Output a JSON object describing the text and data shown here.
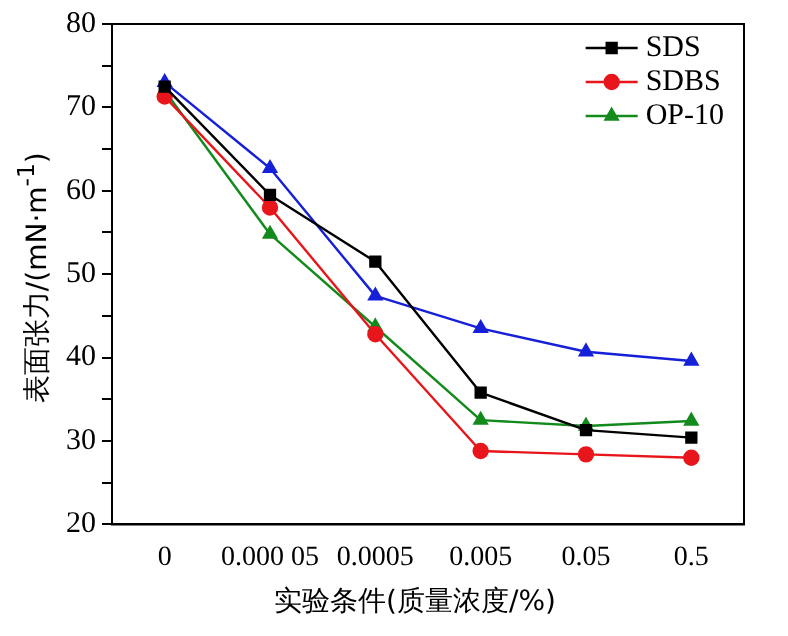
{
  "chart_data": {
    "type": "line",
    "xlabel": "实验条件(质量浓度/%)",
    "ylabel": "表面张力/(mN·m$^{-1}$)",
    "categories": [
      "0",
      "0.000 05",
      "0.0005",
      "0.005",
      "0.05",
      "0.5"
    ],
    "ylim": [
      20,
      80
    ],
    "yticks": [
      20,
      {
        "value": 25,
        "label": null
      },
      30,
      {
        "value": 35,
        "label": null
      },
      40,
      {
        "value": 45,
        "label": null
      },
      50,
      {
        "value": 55,
        "label": null
      },
      60,
      {
        "value": 65,
        "label": null
      },
      70,
      {
        "value": 75,
        "label": null
      },
      80
    ],
    "grid": false,
    "legend": "top right",
    "line_style": "solid",
    "series": [
      {
        "name": "SDS",
        "color": "#000000",
        "marker": "square",
        "values": [
          72.5,
          59.5,
          51.5,
          35.8,
          31.3,
          30.4
        ]
      },
      {
        "name": "SDBS",
        "color": "#e8161b",
        "marker": "circle",
        "values": [
          71.3,
          58.0,
          42.8,
          28.8,
          28.4,
          28.0
        ]
      },
      {
        "color": "#1520d8",
        "marker": "triangle",
        "values": [
          73.0,
          62.7,
          47.4,
          43.5,
          40.7,
          39.6
        ]
      },
      {
        "name": "OP-10",
        "color": "#138a1c",
        "marker": "triangle",
        "values": [
          72.0,
          54.8,
          43.7,
          32.5,
          31.8,
          32.4
        ]
      }
    ]
  }
}
